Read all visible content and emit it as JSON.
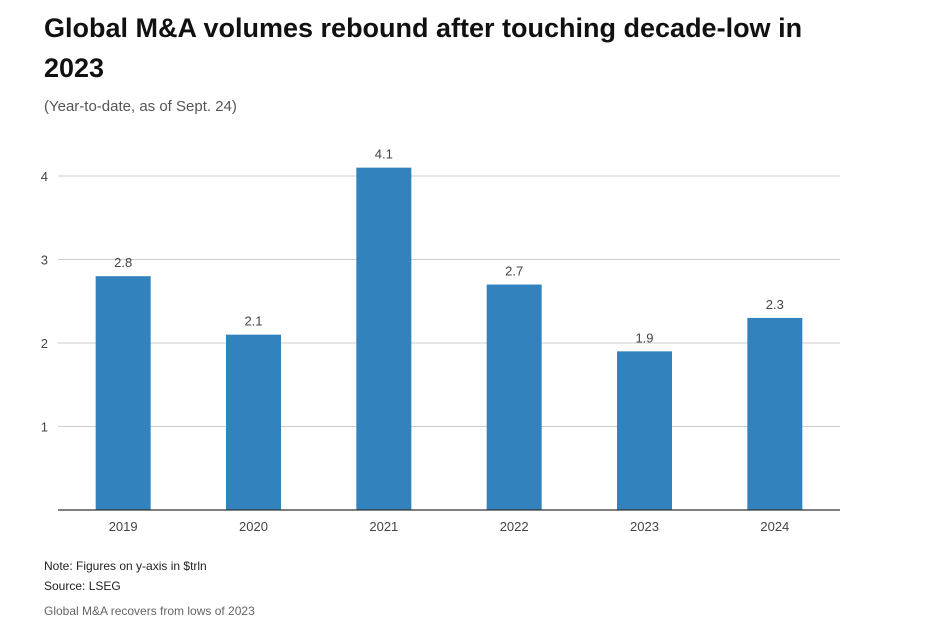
{
  "chart_data": {
    "type": "bar",
    "title": "Global M&A volumes rebound after touching decade-low in 2023",
    "subtitle": "(Year-to-date, as of Sept. 24)",
    "categories": [
      "2019",
      "2020",
      "2021",
      "2022",
      "2023",
      "2024"
    ],
    "values": [
      2.8,
      2.1,
      4.1,
      2.7,
      1.9,
      2.3
    ],
    "value_labels": [
      "2.8",
      "2.1",
      "4.1",
      "2.7",
      "1.9",
      "2.3"
    ],
    "ylim": [
      0,
      4.4
    ],
    "yticks": [
      1,
      2,
      3,
      4
    ],
    "ytick_labels": [
      "1",
      "2",
      "3",
      "4"
    ],
    "xlabel": "",
    "ylabel": "",
    "grid": true,
    "bar_color": "#3182bd",
    "grid_color": "#cccccc",
    "axis_color": "#333333"
  },
  "footer": {
    "note": "Note: Figures on y-axis in $trln",
    "source": "Source: LSEG",
    "caption": "Global M&A recovers from lows of 2023"
  }
}
